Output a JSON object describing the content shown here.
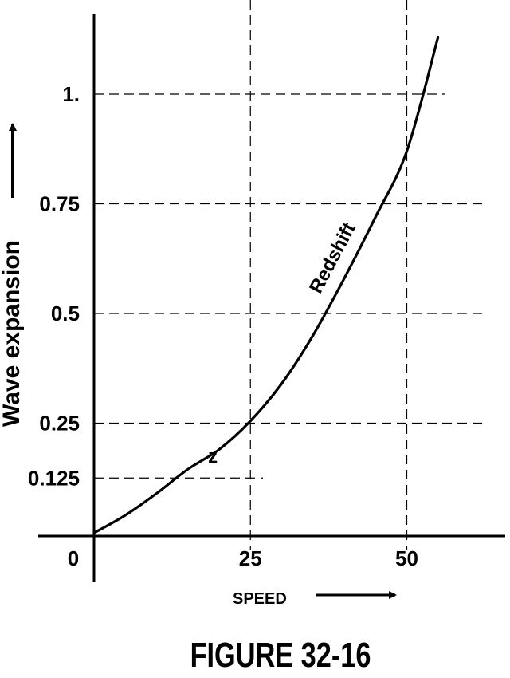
{
  "chart_data": {
    "type": "line",
    "title": "FIGURE 32-16",
    "xlabel": "SPEED",
    "ylabel": "Wave expansion",
    "xlim": [
      0,
      56
    ],
    "ylim": [
      0,
      1.2
    ],
    "origin_label": "0",
    "x_ticks": [
      {
        "value": 25,
        "label": "25"
      },
      {
        "value": 50,
        "label": "50"
      }
    ],
    "y_ticks": [
      {
        "value": 0.125,
        "label": "0.125"
      },
      {
        "value": 0.25,
        "label": "0.25"
      },
      {
        "value": 0.5,
        "label": "0.5"
      },
      {
        "value": 0.75,
        "label": "0.75"
      },
      {
        "value": 1.0,
        "label": "1."
      }
    ],
    "grid": "dashed",
    "series": [
      {
        "x": [
          0,
          5,
          10,
          15,
          20,
          25,
          30,
          35,
          40,
          45,
          50,
          55
        ],
        "y": [
          0,
          0.04,
          0.09,
          0.145,
          0.19,
          0.255,
          0.34,
          0.45,
          0.58,
          0.72,
          0.87,
          1.13
        ]
      }
    ],
    "annotations": [
      {
        "text": "Redshift",
        "x": 39,
        "y": 0.62
      },
      {
        "text": "z",
        "x": 19,
        "y": 0.16
      }
    ]
  }
}
